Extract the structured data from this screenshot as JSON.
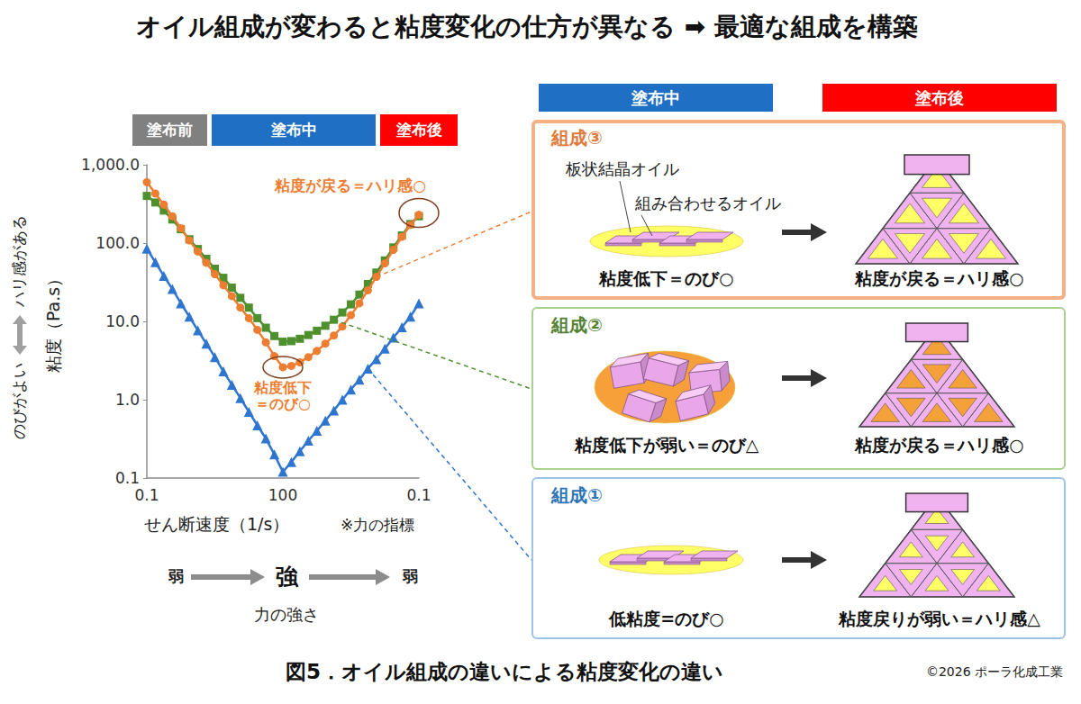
{
  "title": "オイル組成が変わると粘度変化の仕方が異なる ➡ 最適な組成を構築",
  "chart_data": {
    "type": "line",
    "phases": [
      {
        "label": "塗布前",
        "color": "#808080"
      },
      {
        "label": "塗布中",
        "color": "#1f6fc5"
      },
      {
        "label": "塗布後",
        "color": "#ff0000"
      }
    ],
    "categories": [
      "0.1",
      null,
      null,
      null,
      null,
      null,
      null,
      null,
      null,
      null,
      null,
      null,
      null,
      null,
      null,
      null,
      "100",
      null,
      null,
      null,
      null,
      null,
      null,
      null,
      null,
      null,
      null,
      null,
      null,
      null,
      null,
      null,
      "0.1"
    ],
    "xlabel": "せん断速度（1/s）",
    "x_note": "※力の指標",
    "ylabel": "粘度（Pa.s）",
    "y_scale_label": {
      "low": "のびがよい",
      "high": "ハリ感がある"
    },
    "force": {
      "label": "力の強さ",
      "marks": [
        "弱",
        "強",
        "弱"
      ]
    },
    "log": "y",
    "ylim": [
      0.1,
      1000
    ],
    "yticks": [
      0.1,
      {
        "value": 1,
        "label": "1.0"
      },
      {
        "value": 10,
        "label": "10.0"
      },
      {
        "value": 100,
        "label": "100.0"
      },
      {
        "value": 1000,
        "label": "1,000.0"
      }
    ],
    "grid": false,
    "series": [
      {
        "color": "#ed7d31",
        "marker": "circle",
        "values": [
          600,
          430,
          310,
          220,
          155,
          108,
          78,
          56,
          40,
          29,
          21,
          15,
          11,
          7.8,
          5.4,
          3.6,
          2.6,
          2.7,
          3.0,
          3.5,
          4.2,
          5.2,
          6.6,
          8.6,
          12,
          17,
          25,
          37,
          55,
          82,
          120,
          170,
          230
        ],
        "annotations": {
          "end": "粘度が戻る＝ハリ感○",
          "min": [
            "粘度低下",
            "＝のび○"
          ]
        }
      },
      {
        "color": "#4e8f2e",
        "marker": "square",
        "values": [
          400,
          330,
          260,
          200,
          150,
          112,
          84,
          63,
          47,
          36,
          27,
          20,
          15,
          11,
          8.3,
          6.5,
          5.5,
          5.6,
          6.0,
          6.7,
          7.6,
          8.8,
          10.5,
          13,
          16.5,
          22,
          30,
          42,
          60,
          88,
          125,
          175,
          220
        ]
      },
      {
        "color": "#2e75d0",
        "marker": "triangle",
        "values": [
          85,
          57,
          38,
          26,
          17,
          11.5,
          7.7,
          5.2,
          3.5,
          2.3,
          1.55,
          1.05,
          0.7,
          0.47,
          0.32,
          0.2,
          0.12,
          0.16,
          0.22,
          0.3,
          0.4,
          0.54,
          0.73,
          1.0,
          1.35,
          1.8,
          2.5,
          3.3,
          4.5,
          6.2,
          8.4,
          11.5,
          17
        ]
      }
    ]
  },
  "panels": {
    "headers": [
      {
        "label": "塗布中",
        "color": "#1f6fc5"
      },
      {
        "label": "塗布後",
        "color": "#ff0000"
      }
    ],
    "items": [
      {
        "title": "組成③",
        "color": "#e07b3c",
        "labels": [
          "板状結晶オイル",
          "組み合わせるオイル"
        ],
        "during": "粘度低下＝のび○",
        "after": "粘度が戻る＝ハリ感○"
      },
      {
        "title": "組成②",
        "color": "#548235",
        "during": "粘度低下が弱い＝のび△",
        "after": "粘度が戻る＝ハリ感○"
      },
      {
        "title": "組成①",
        "color": "#2e75b6",
        "during": "低粘度=のび○",
        "after": "粘度戻りが弱い＝ハリ感△"
      }
    ]
  },
  "caption": "図5．オイル組成の違いによる粘度変化の違い",
  "copyright": "©2026 ポーラ化成工業"
}
